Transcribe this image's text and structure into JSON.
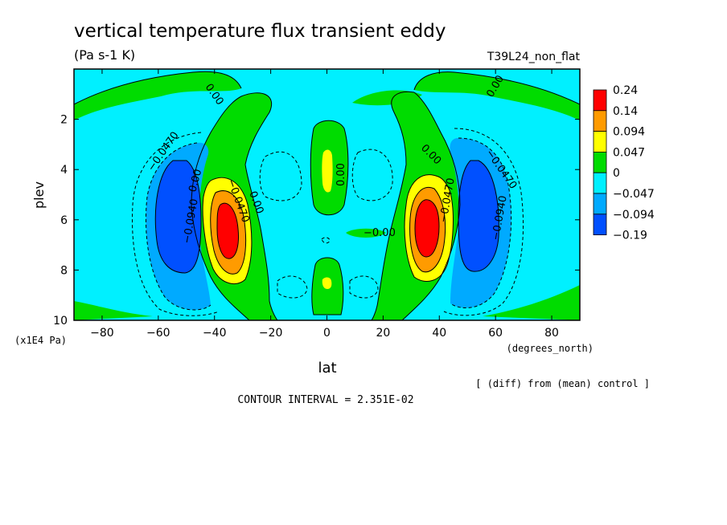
{
  "chart_data": {
    "type": "heatmap",
    "title": "vertical temperature flux transient eddy",
    "units": "(Pa s-1 K)",
    "run_label": "T39L24_non_flat",
    "xlabel": "lat",
    "xunits": "(degrees_north)",
    "ylabel": "plev",
    "yunits": "(x1E4 Pa)",
    "xlim": [
      -90,
      90
    ],
    "ylim": [
      10,
      0
    ],
    "x_ticks": [
      -80,
      -60,
      -40,
      -20,
      0,
      20,
      40,
      60,
      80
    ],
    "y_ticks": [
      2,
      4,
      6,
      8,
      10
    ],
    "x_tick_labels": [
      "−80",
      "−60",
      "−40",
      "−20",
      "0",
      "20",
      "40",
      "60",
      "80"
    ],
    "y_tick_labels": [
      "2",
      "4",
      "6",
      "8",
      "10"
    ],
    "footnote": "[ (diff) from (mean) control ]",
    "contour_interval_text": "CONTOUR INTERVAL = 2.351E-02",
    "contour_labels": [
      "0.00",
      "−0.0470",
      "−0.0940",
      "−0.00"
    ],
    "colorbar": {
      "labels": [
        "0.24",
        "0.14",
        "0.094",
        "0.047",
        "0",
        "−0.047",
        "−0.094",
        "−0.19"
      ],
      "colors": [
        "#ff0000",
        "#ff9b00",
        "#ffff00",
        "#00dc00",
        "#00f0ff",
        "#00aaff",
        "#0050ff"
      ]
    },
    "features": [
      {
        "kind": "max",
        "lat": -35,
        "plev": 6.3,
        "value": 0.24
      },
      {
        "kind": "max",
        "lat": 37,
        "plev": 6.3,
        "value": 0.24
      },
      {
        "kind": "min",
        "lat": -57,
        "plev": 5.8,
        "value": -0.19
      },
      {
        "kind": "min",
        "lat": 57,
        "plev": 5.8,
        "value": -0.19
      },
      {
        "kind": "max",
        "lat": 0,
        "plev": 4.0,
        "value": 0.094
      },
      {
        "kind": "max",
        "lat": 0,
        "plev": 8.5,
        "value": 0.094
      }
    ]
  }
}
